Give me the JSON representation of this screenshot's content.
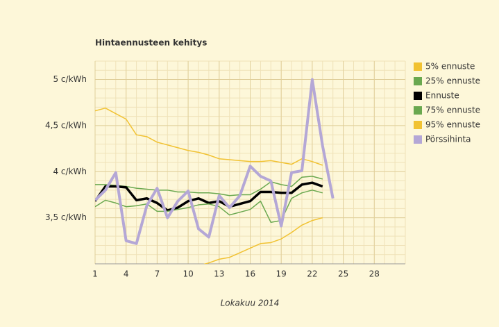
{
  "chart_data": {
    "type": "line",
    "title": "Hintaennusteen kehitys",
    "x_label": "Lokakuu 2014",
    "x": [
      1,
      2,
      3,
      4,
      5,
      6,
      7,
      8,
      9,
      10,
      11,
      12,
      13,
      14,
      15,
      16,
      17,
      18,
      19,
      20,
      21,
      22,
      23,
      24
    ],
    "xlim": [
      1,
      31
    ],
    "xticks": [
      1,
      4,
      7,
      10,
      13,
      16,
      19,
      22,
      25,
      28
    ],
    "ylim": [
      3,
      5.2
    ],
    "yticks": [
      {
        "value": 3.5,
        "label": "3,5 c/kWh"
      },
      {
        "value": 4,
        "label": "4 c/kWh"
      },
      {
        "value": 4.5,
        "label": "4,5 c/kWh"
      },
      {
        "value": 5,
        "label": "5 c/kWh"
      }
    ],
    "grid": true,
    "legend": "right",
    "series": [
      {
        "name": "5% ennuste",
        "color": "#f1c232",
        "width": 1.5,
        "values": [
          4.66,
          4.69,
          4.63,
          4.57,
          4.4,
          4.38,
          4.32,
          4.29,
          4.26,
          4.23,
          4.21,
          4.18,
          4.14,
          4.13,
          4.12,
          4.11,
          4.11,
          4.12,
          4.1,
          4.08,
          4.14,
          4.11,
          4.07,
          null
        ]
      },
      {
        "name": "25% ennuste",
        "color": "#6aa84f",
        "width": 1.5,
        "values": [
          3.86,
          3.86,
          3.85,
          3.84,
          3.82,
          3.81,
          3.8,
          3.8,
          3.78,
          3.78,
          3.77,
          3.77,
          3.76,
          3.74,
          3.75,
          3.75,
          3.81,
          3.89,
          3.86,
          3.84,
          3.94,
          3.95,
          3.92,
          null
        ]
      },
      {
        "name": "Ennuste",
        "color": "#000000",
        "width": 3.5,
        "values": [
          3.68,
          3.84,
          3.84,
          3.83,
          3.69,
          3.71,
          3.66,
          3.58,
          3.61,
          3.68,
          3.71,
          3.66,
          3.68,
          3.62,
          3.65,
          3.68,
          3.78,
          3.78,
          3.77,
          3.77,
          3.86,
          3.88,
          3.84,
          null
        ]
      },
      {
        "name": "75% ennuste",
        "color": "#6aa84f",
        "width": 1.5,
        "values": [
          3.62,
          3.69,
          3.66,
          3.62,
          3.63,
          3.65,
          3.57,
          3.57,
          3.59,
          3.61,
          3.64,
          3.65,
          3.62,
          3.53,
          3.56,
          3.59,
          3.68,
          3.45,
          3.47,
          3.71,
          3.77,
          3.8,
          3.77,
          null
        ]
      },
      {
        "name": "95% ennuste",
        "color": "#f1c232",
        "width": 1.5,
        "values": [
          null,
          null,
          null,
          null,
          null,
          null,
          null,
          null,
          null,
          null,
          2.98,
          3.01,
          3.05,
          3.07,
          3.12,
          3.17,
          3.22,
          3.23,
          3.27,
          3.34,
          3.42,
          3.47,
          3.5,
          null
        ]
      },
      {
        "name": "Pörssihinta",
        "color": "#b4a7d6",
        "width": 4,
        "values": [
          3.69,
          3.8,
          3.99,
          3.25,
          3.22,
          3.63,
          3.82,
          3.5,
          3.68,
          3.79,
          3.38,
          3.29,
          3.74,
          3.61,
          3.74,
          4.06,
          3.95,
          3.9,
          3.41,
          3.99,
          4.01,
          5.0,
          4.28,
          3.71
        ]
      }
    ]
  }
}
